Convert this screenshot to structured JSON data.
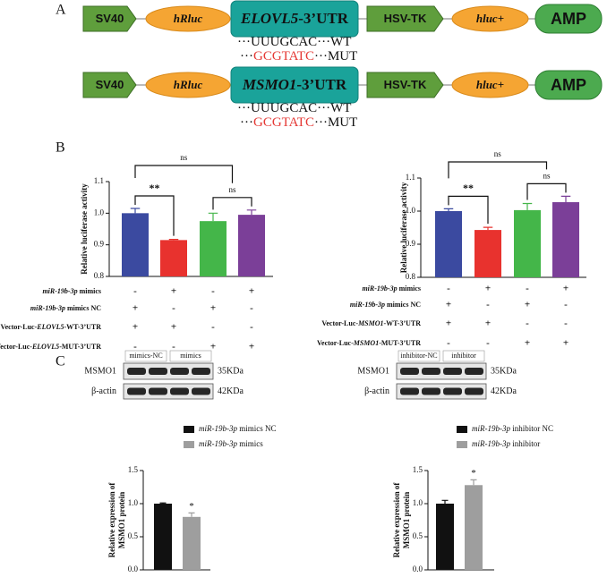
{
  "panels": {
    "a": "A",
    "b": "B",
    "c": "C"
  },
  "constructs": [
    {
      "parts": [
        [
          {
            "text": "SV40"
          }
        ],
        [
          {
            "text": "hRluc",
            "italic": true
          }
        ],
        [
          {
            "text": "ELOVL5",
            "italic": true
          },
          {
            "text": "-3’UTR"
          }
        ],
        [
          {
            "text": "HSV-TK"
          }
        ],
        [
          {
            "text": "hluc",
            "italic": true
          },
          {
            "text": "+"
          }
        ],
        [
          {
            "text": "AMP"
          }
        ]
      ],
      "wt": [
        {
          "text": "···UUUGCAC···WT"
        }
      ],
      "mut": [
        {
          "text": "···"
        },
        {
          "text": "GCGTATC",
          "color": "#e53935"
        },
        {
          "text": "···MUT"
        }
      ]
    },
    {
      "parts": [
        [
          {
            "text": "SV40"
          }
        ],
        [
          {
            "text": "hRluc",
            "italic": true
          }
        ],
        [
          {
            "text": "MSMO1",
            "italic": true
          },
          {
            "text": "-3’UTR"
          }
        ],
        [
          {
            "text": "HSV-TK"
          }
        ],
        [
          {
            "text": "hluc",
            "italic": true
          },
          {
            "text": "+"
          }
        ],
        [
          {
            "text": "AMP"
          }
        ]
      ],
      "wt": [
        {
          "text": "···UUUGCAC···WT"
        }
      ],
      "mut": [
        {
          "text": "···"
        },
        {
          "text": "GCGTATC",
          "color": "#e53935"
        },
        {
          "text": "···MUT"
        }
      ]
    }
  ],
  "blots": [
    {
      "lanes": [
        "mimics-NC",
        "mimics"
      ],
      "proteins": [
        "MSMO1",
        "β-actin"
      ],
      "sizes": [
        "35KDa",
        "42KDa"
      ]
    },
    {
      "lanes": [
        "inhibitor-NC",
        "inhibitor"
      ],
      "proteins": [
        "MSMO1",
        "β-actin"
      ],
      "sizes": [
        "35KDa",
        "42KDa"
      ]
    }
  ],
  "chart_data": [
    {
      "type": "bar",
      "ylabel": "Relative luciferase activity",
      "values": [
        1.0,
        0.915,
        0.975,
        0.995
      ],
      "errors": [
        0.015,
        0.002,
        0.025,
        0.015
      ],
      "colors": [
        "#3b4aa0",
        "#e8322e",
        "#44b649",
        "#7b3f98"
      ],
      "ylim": [
        0.8,
        1.1
      ],
      "yticks": [
        0.8,
        0.9,
        {
          "value": 1,
          "label": "1.0"
        },
        1.1
      ],
      "annotations": [
        "ns",
        "**",
        "ns"
      ],
      "treatments": [
        {
          "label": [
            {
              "text": "miR-19b-3p",
              "italic": true
            },
            {
              "text": " mimics"
            }
          ],
          "signs": [
            "-",
            "+",
            "-",
            "+"
          ]
        },
        {
          "label": [
            {
              "text": "miR-19b-3p",
              "italic": true
            },
            {
              "text": " mimics NC"
            }
          ],
          "signs": [
            "+",
            "-",
            "+",
            "-"
          ]
        },
        {
          "label": [
            {
              "text": "Vector-Luc-"
            },
            {
              "text": "ELOVL5",
              "italic": true
            },
            {
              "text": "-WT-3’UTR"
            }
          ],
          "signs": [
            "+",
            "+",
            "-",
            "-"
          ]
        },
        {
          "label": [
            {
              "text": "Vector-Luc-"
            },
            {
              "text": "ELOVL5",
              "italic": true
            },
            {
              "text": "-MUT-3’UTR"
            }
          ],
          "signs": [
            "-",
            "-",
            "+",
            "+"
          ]
        }
      ]
    },
    {
      "type": "bar",
      "ylabel": "Relative luciferase activity",
      "values": [
        1.0,
        0.943,
        1.003,
        1.027
      ],
      "errors": [
        0.007,
        0.008,
        0.02,
        0.018
      ],
      "colors": [
        "#3b4aa0",
        "#e8322e",
        "#44b649",
        "#7b3f98"
      ],
      "ylim": [
        0.8,
        1.1
      ],
      "yticks": [
        0.8,
        0.9,
        {
          "value": 1,
          "label": "1.0"
        },
        1.1
      ],
      "annotations": [
        "ns",
        "**",
        "ns"
      ],
      "treatments": [
        {
          "label": [
            {
              "text": "miR-19b-3p",
              "italic": true
            },
            {
              "text": " mimics"
            }
          ],
          "signs": [
            "-",
            "+",
            "-",
            "+"
          ]
        },
        {
          "label": [
            {
              "text": "miR-19b-3p",
              "italic": true
            },
            {
              "text": " mimics NC"
            }
          ],
          "signs": [
            "+",
            "-",
            "+",
            "-"
          ]
        },
        {
          "label": [
            {
              "text": "Vector-Luc-"
            },
            {
              "text": "MSMO1",
              "italic": true
            },
            {
              "text": "-WT-3’UTR"
            }
          ],
          "signs": [
            "+",
            "+",
            "-",
            "-"
          ]
        },
        {
          "label": [
            {
              "text": "Vector-Luc-"
            },
            {
              "text": "MSMO1",
              "italic": true
            },
            {
              "text": "-MUT-3’UTR"
            }
          ],
          "signs": [
            "-",
            "-",
            "+",
            "+"
          ]
        }
      ]
    },
    {
      "type": "bar",
      "ylabel": [
        "Relative expression of",
        "MSMO1 protein"
      ],
      "ylim": [
        0,
        1.5
      ],
      "yticks": [
        {
          "value": 0,
          "label": "0.0"
        },
        0.5,
        {
          "value": 1,
          "label": "1.0"
        },
        1.5
      ],
      "series": [
        {
          "name": [
            {
              "text": "miR-19b-3p",
              "italic": true
            },
            {
              "text": " mimics NC"
            }
          ],
          "color": "#111111",
          "values": [
            1.0
          ],
          "errors": [
            0.01
          ]
        },
        {
          "name": [
            {
              "text": "miR-19b-3p",
              "italic": true
            },
            {
              "text": " mimics"
            }
          ],
          "color": "#9e9e9e",
          "values": [
            0.8
          ],
          "errors": [
            0.06
          ]
        }
      ],
      "annotations": [
        "*"
      ]
    },
    {
      "type": "bar",
      "ylabel": [
        "Relative expression of",
        "MSMO1 protein"
      ],
      "ylim": [
        0,
        1.5
      ],
      "yticks": [
        {
          "value": 0,
          "label": "0.0"
        },
        0.5,
        {
          "value": 1,
          "label": "1.0"
        },
        1.5
      ],
      "series": [
        {
          "name": [
            {
              "text": "miR-19b-3p",
              "italic": true
            },
            {
              "text": " inhibitor NC"
            }
          ],
          "color": "#111111",
          "values": [
            1.0
          ],
          "errors": [
            0.05
          ]
        },
        {
          "name": [
            {
              "text": "miR-19b-3p",
              "italic": true
            },
            {
              "text": " inhibitor"
            }
          ],
          "color": "#9e9e9e",
          "values": [
            1.28
          ],
          "errors": [
            0.08
          ]
        }
      ],
      "annotations": [
        "*"
      ]
    }
  ]
}
